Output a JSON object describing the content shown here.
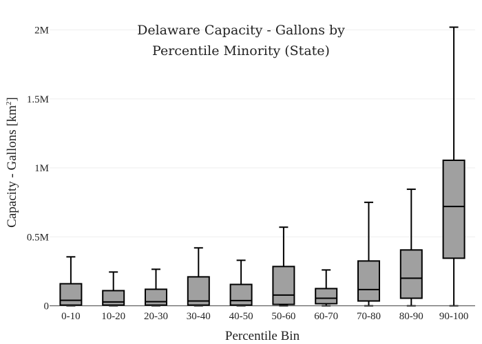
{
  "chart_data": {
    "type": "box",
    "title_lines": [
      "Delaware Capacity - Gallons by",
      "Percentile Minority (State)"
    ],
    "xlabel": "Percentile Bin",
    "ylabel_main": "Capacity - Gallons  [km",
    "ylabel_sup": "2",
    "ylabel_end": "]",
    "ylim": [
      0,
      2000000
    ],
    "yticks": [
      {
        "value": 0,
        "label": "0"
      },
      {
        "value": 500000,
        "label": "0.5M"
      },
      {
        "value": 1000000,
        "label": "1M"
      },
      {
        "value": 1500000,
        "label": "1.5M"
      },
      {
        "value": 2000000,
        "label": "2M"
      }
    ],
    "grid": true,
    "box_color": "#a0a0a0",
    "categories": [
      "0-10",
      "10-20",
      "20-30",
      "30-40",
      "40-50",
      "50-60",
      "60-70",
      "70-80",
      "80-90",
      "90-100"
    ],
    "boxes": [
      {
        "min": 0,
        "q1": 5000,
        "median": 40000,
        "q3": 160000,
        "max": 355000
      },
      {
        "min": 0,
        "q1": 5000,
        "median": 28000,
        "q3": 110000,
        "max": 245000
      },
      {
        "min": 0,
        "q1": 5000,
        "median": 30000,
        "q3": 120000,
        "max": 265000
      },
      {
        "min": 0,
        "q1": 5000,
        "median": 35000,
        "q3": 210000,
        "max": 420000
      },
      {
        "min": 0,
        "q1": 5000,
        "median": 38000,
        "q3": 155000,
        "max": 330000
      },
      {
        "min": 0,
        "q1": 10000,
        "median": 78000,
        "q3": 285000,
        "max": 570000
      },
      {
        "min": 0,
        "q1": 15000,
        "median": 55000,
        "q3": 125000,
        "max": 260000
      },
      {
        "min": 0,
        "q1": 35000,
        "median": 118000,
        "q3": 325000,
        "max": 750000
      },
      {
        "min": 0,
        "q1": 55000,
        "median": 200000,
        "q3": 405000,
        "max": 845000
      },
      {
        "min": 0,
        "q1": 345000,
        "median": 720000,
        "q3": 1055000,
        "max": 2020000
      }
    ]
  }
}
